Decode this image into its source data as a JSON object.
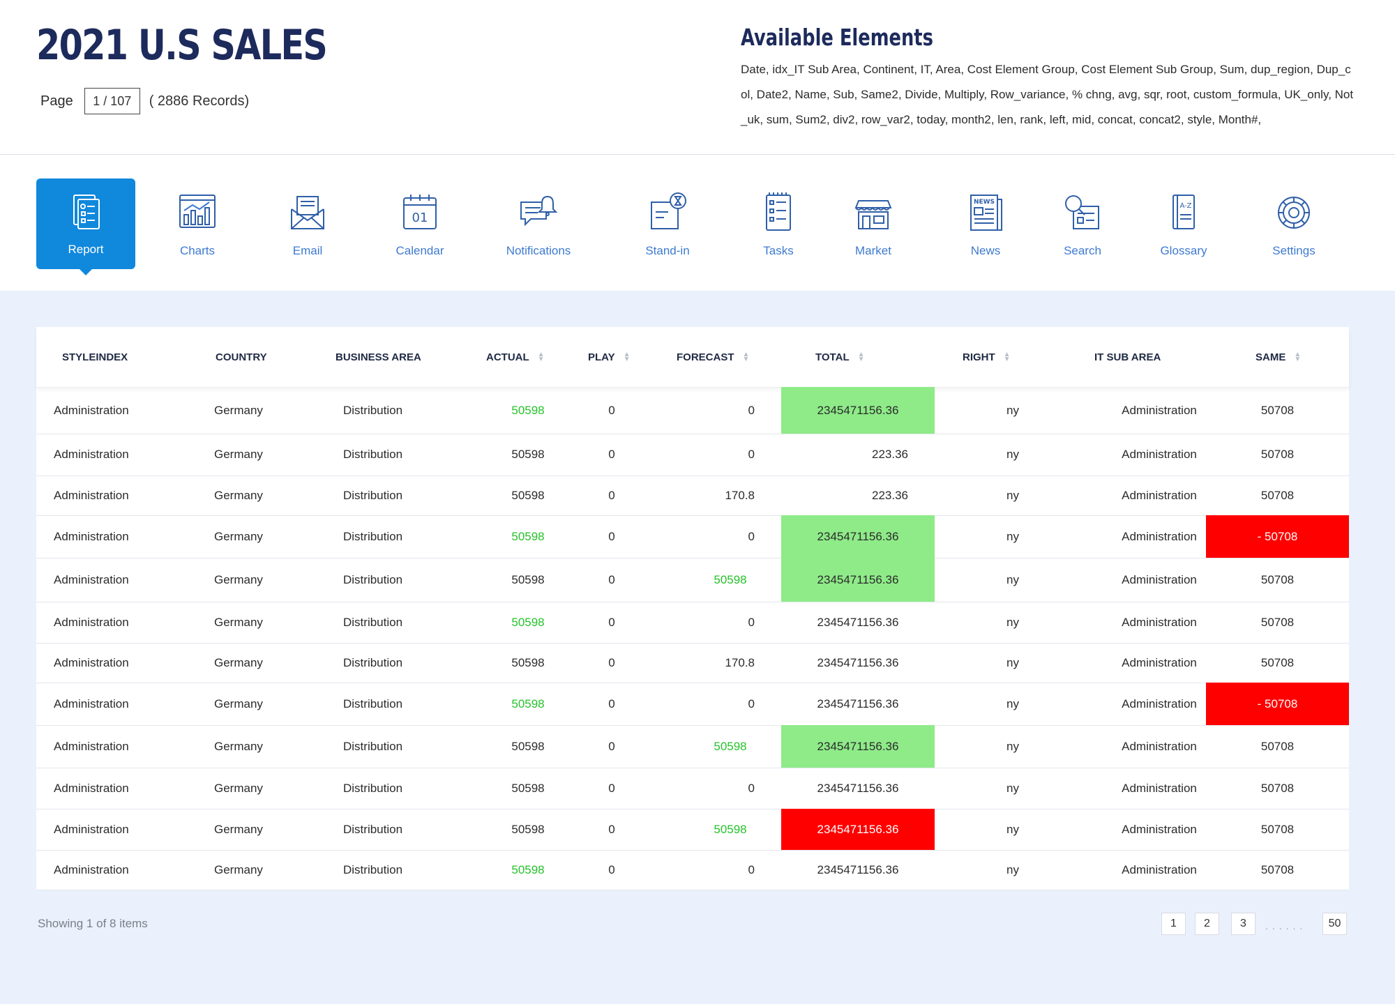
{
  "header": {
    "title": "2021 U.S SALES",
    "page_label": "Page",
    "page_value": "1 / 107",
    "records": "( 2886 Records)",
    "available_title": "Available Elements",
    "available_text": "Date, idx_IT Sub Area, Continent, IT, Area, Cost Element Group, Cost Element Sub Group, Sum, dup_region, Dup_col, Date2, Name, Sub, Same2, Divide, Multiply, Row_variance, % chng, avg, sqr, root, custom_formula, UK_only, Not_uk, sum, Sum2, div2, row_var2, today, month2, len, rank, left, mid, concat, concat2, style, Month#,"
  },
  "nav": {
    "items": [
      {
        "label": "Report",
        "icon": "report-icon",
        "active": true
      },
      {
        "label": "Charts",
        "icon": "charts-icon"
      },
      {
        "label": "Email",
        "icon": "email-icon"
      },
      {
        "label": "Calendar",
        "icon": "calendar-icon"
      },
      {
        "label": "Notifications",
        "icon": "notifications-icon"
      },
      {
        "label": "Stand-in",
        "icon": "stand-in-icon"
      },
      {
        "label": "Tasks",
        "icon": "tasks-icon"
      },
      {
        "label": "Market",
        "icon": "market-icon"
      },
      {
        "label": "News",
        "icon": "news-icon"
      },
      {
        "label": "Search",
        "icon": "search-icon"
      },
      {
        "label": "Glossary",
        "icon": "glossary-icon"
      },
      {
        "label": "Settings",
        "icon": "settings-icon"
      }
    ]
  },
  "table": {
    "columns": [
      {
        "label": "STYLEINDEX",
        "sortable": false
      },
      {
        "label": "COUNTRY",
        "sortable": false
      },
      {
        "label": "BUSINESS AREA",
        "sortable": false
      },
      {
        "label": "ACTUAL",
        "sortable": true
      },
      {
        "label": "PLAY",
        "sortable": true
      },
      {
        "label": "FORECAST",
        "sortable": true
      },
      {
        "label": "TOTAL",
        "sortable": true
      },
      {
        "label": "RIGHT",
        "sortable": true
      },
      {
        "label": "IT SUB AREA",
        "sortable": false
      },
      {
        "label": "SAME",
        "sortable": true
      }
    ],
    "rows": [
      {
        "styleindex": "Administration",
        "country": "Germany",
        "business_area": "Distribution",
        "actual": "50598",
        "actual_green": true,
        "play": "0",
        "forecast": "0",
        "forecast_green": false,
        "total": "2345471156.36",
        "total_bg": "green",
        "right": "ny",
        "it_sub_area": "Administration",
        "same": "50708",
        "same_bg": ""
      },
      {
        "styleindex": "Administration",
        "country": "Germany",
        "business_area": "Distribution",
        "actual": "50598",
        "actual_green": false,
        "play": "0",
        "forecast": "0",
        "forecast_green": false,
        "total": "223.36",
        "total_bg": "",
        "right": "ny",
        "it_sub_area": "Administration",
        "same": "50708",
        "same_bg": ""
      },
      {
        "styleindex": "Administration",
        "country": "Germany",
        "business_area": "Distribution",
        "actual": "50598",
        "actual_green": false,
        "play": "0",
        "forecast": "170.8",
        "forecast_green": false,
        "total": "223.36",
        "total_bg": "",
        "right": "ny",
        "it_sub_area": "Administration",
        "same": "50708",
        "same_bg": ""
      },
      {
        "styleindex": "Administration",
        "country": "Germany",
        "business_area": "Distribution",
        "actual": "50598",
        "actual_green": true,
        "play": "0",
        "forecast": "0",
        "forecast_green": false,
        "total": "2345471156.36",
        "total_bg": "green",
        "right": "ny",
        "it_sub_area": "Administration",
        "same": "- 50708",
        "same_bg": "red"
      },
      {
        "styleindex": "Administration",
        "country": "Germany",
        "business_area": "Distribution",
        "actual": "50598",
        "actual_green": false,
        "play": "0",
        "forecast": "50598",
        "forecast_green": true,
        "total": "2345471156.36",
        "total_bg": "green",
        "right": "ny",
        "it_sub_area": "Administration",
        "same": "50708",
        "same_bg": ""
      },
      {
        "styleindex": "Administration",
        "country": "Germany",
        "business_area": "Distribution",
        "actual": "50598",
        "actual_green": true,
        "play": "0",
        "forecast": "0",
        "forecast_green": false,
        "total": "2345471156.36",
        "total_bg": "",
        "right": "ny",
        "it_sub_area": "Administration",
        "same": "50708",
        "same_bg": ""
      },
      {
        "styleindex": "Administration",
        "country": "Germany",
        "business_area": "Distribution",
        "actual": "50598",
        "actual_green": false,
        "play": "0",
        "forecast": "170.8",
        "forecast_green": false,
        "total": "2345471156.36",
        "total_bg": "",
        "right": "ny",
        "it_sub_area": "Administration",
        "same": "50708",
        "same_bg": ""
      },
      {
        "styleindex": "Administration",
        "country": "Germany",
        "business_area": "Distribution",
        "actual": "50598",
        "actual_green": true,
        "play": "0",
        "forecast": "0",
        "forecast_green": false,
        "total": "2345471156.36",
        "total_bg": "",
        "right": "ny",
        "it_sub_area": "Administration",
        "same": "- 50708",
        "same_bg": "red"
      },
      {
        "styleindex": "Administration",
        "country": "Germany",
        "business_area": "Distribution",
        "actual": "50598",
        "actual_green": false,
        "play": "0",
        "forecast": "50598",
        "forecast_green": true,
        "total": "2345471156.36",
        "total_bg": "green",
        "right": "ny",
        "it_sub_area": "Administration",
        "same": "50708",
        "same_bg": ""
      },
      {
        "styleindex": "Administration",
        "country": "Germany",
        "business_area": "Distribution",
        "actual": "50598",
        "actual_green": false,
        "play": "0",
        "forecast": "0",
        "forecast_green": false,
        "total": "2345471156.36",
        "total_bg": "",
        "right": "ny",
        "it_sub_area": "Administration",
        "same": "50708",
        "same_bg": ""
      },
      {
        "styleindex": "Administration",
        "country": "Germany",
        "business_area": "Distribution",
        "actual": "50598",
        "actual_green": false,
        "play": "0",
        "forecast": "50598",
        "forecast_green": true,
        "total": "2345471156.36",
        "total_bg": "red",
        "right": "ny",
        "it_sub_area": "Administration",
        "same": "50708",
        "same_bg": ""
      },
      {
        "styleindex": "Administration",
        "country": "Germany",
        "business_area": "Distribution",
        "actual": "50598",
        "actual_green": true,
        "play": "0",
        "forecast": "0",
        "forecast_green": false,
        "total": "2345471156.36",
        "total_bg": "",
        "right": "ny",
        "it_sub_area": "Administration",
        "same": "50708",
        "same_bg": ""
      }
    ]
  },
  "footer": {
    "showing": "Showing 1 of 8 items",
    "pages": [
      "1",
      "2",
      "3"
    ],
    "ellipsis": "......",
    "last_page": "50"
  },
  "colors": {
    "accent": "#1088dc",
    "icon_blue": "#3d7ad0",
    "highlight_green": "#8eeb88",
    "highlight_red": "#ff0000",
    "text_green": "#25c22a"
  }
}
